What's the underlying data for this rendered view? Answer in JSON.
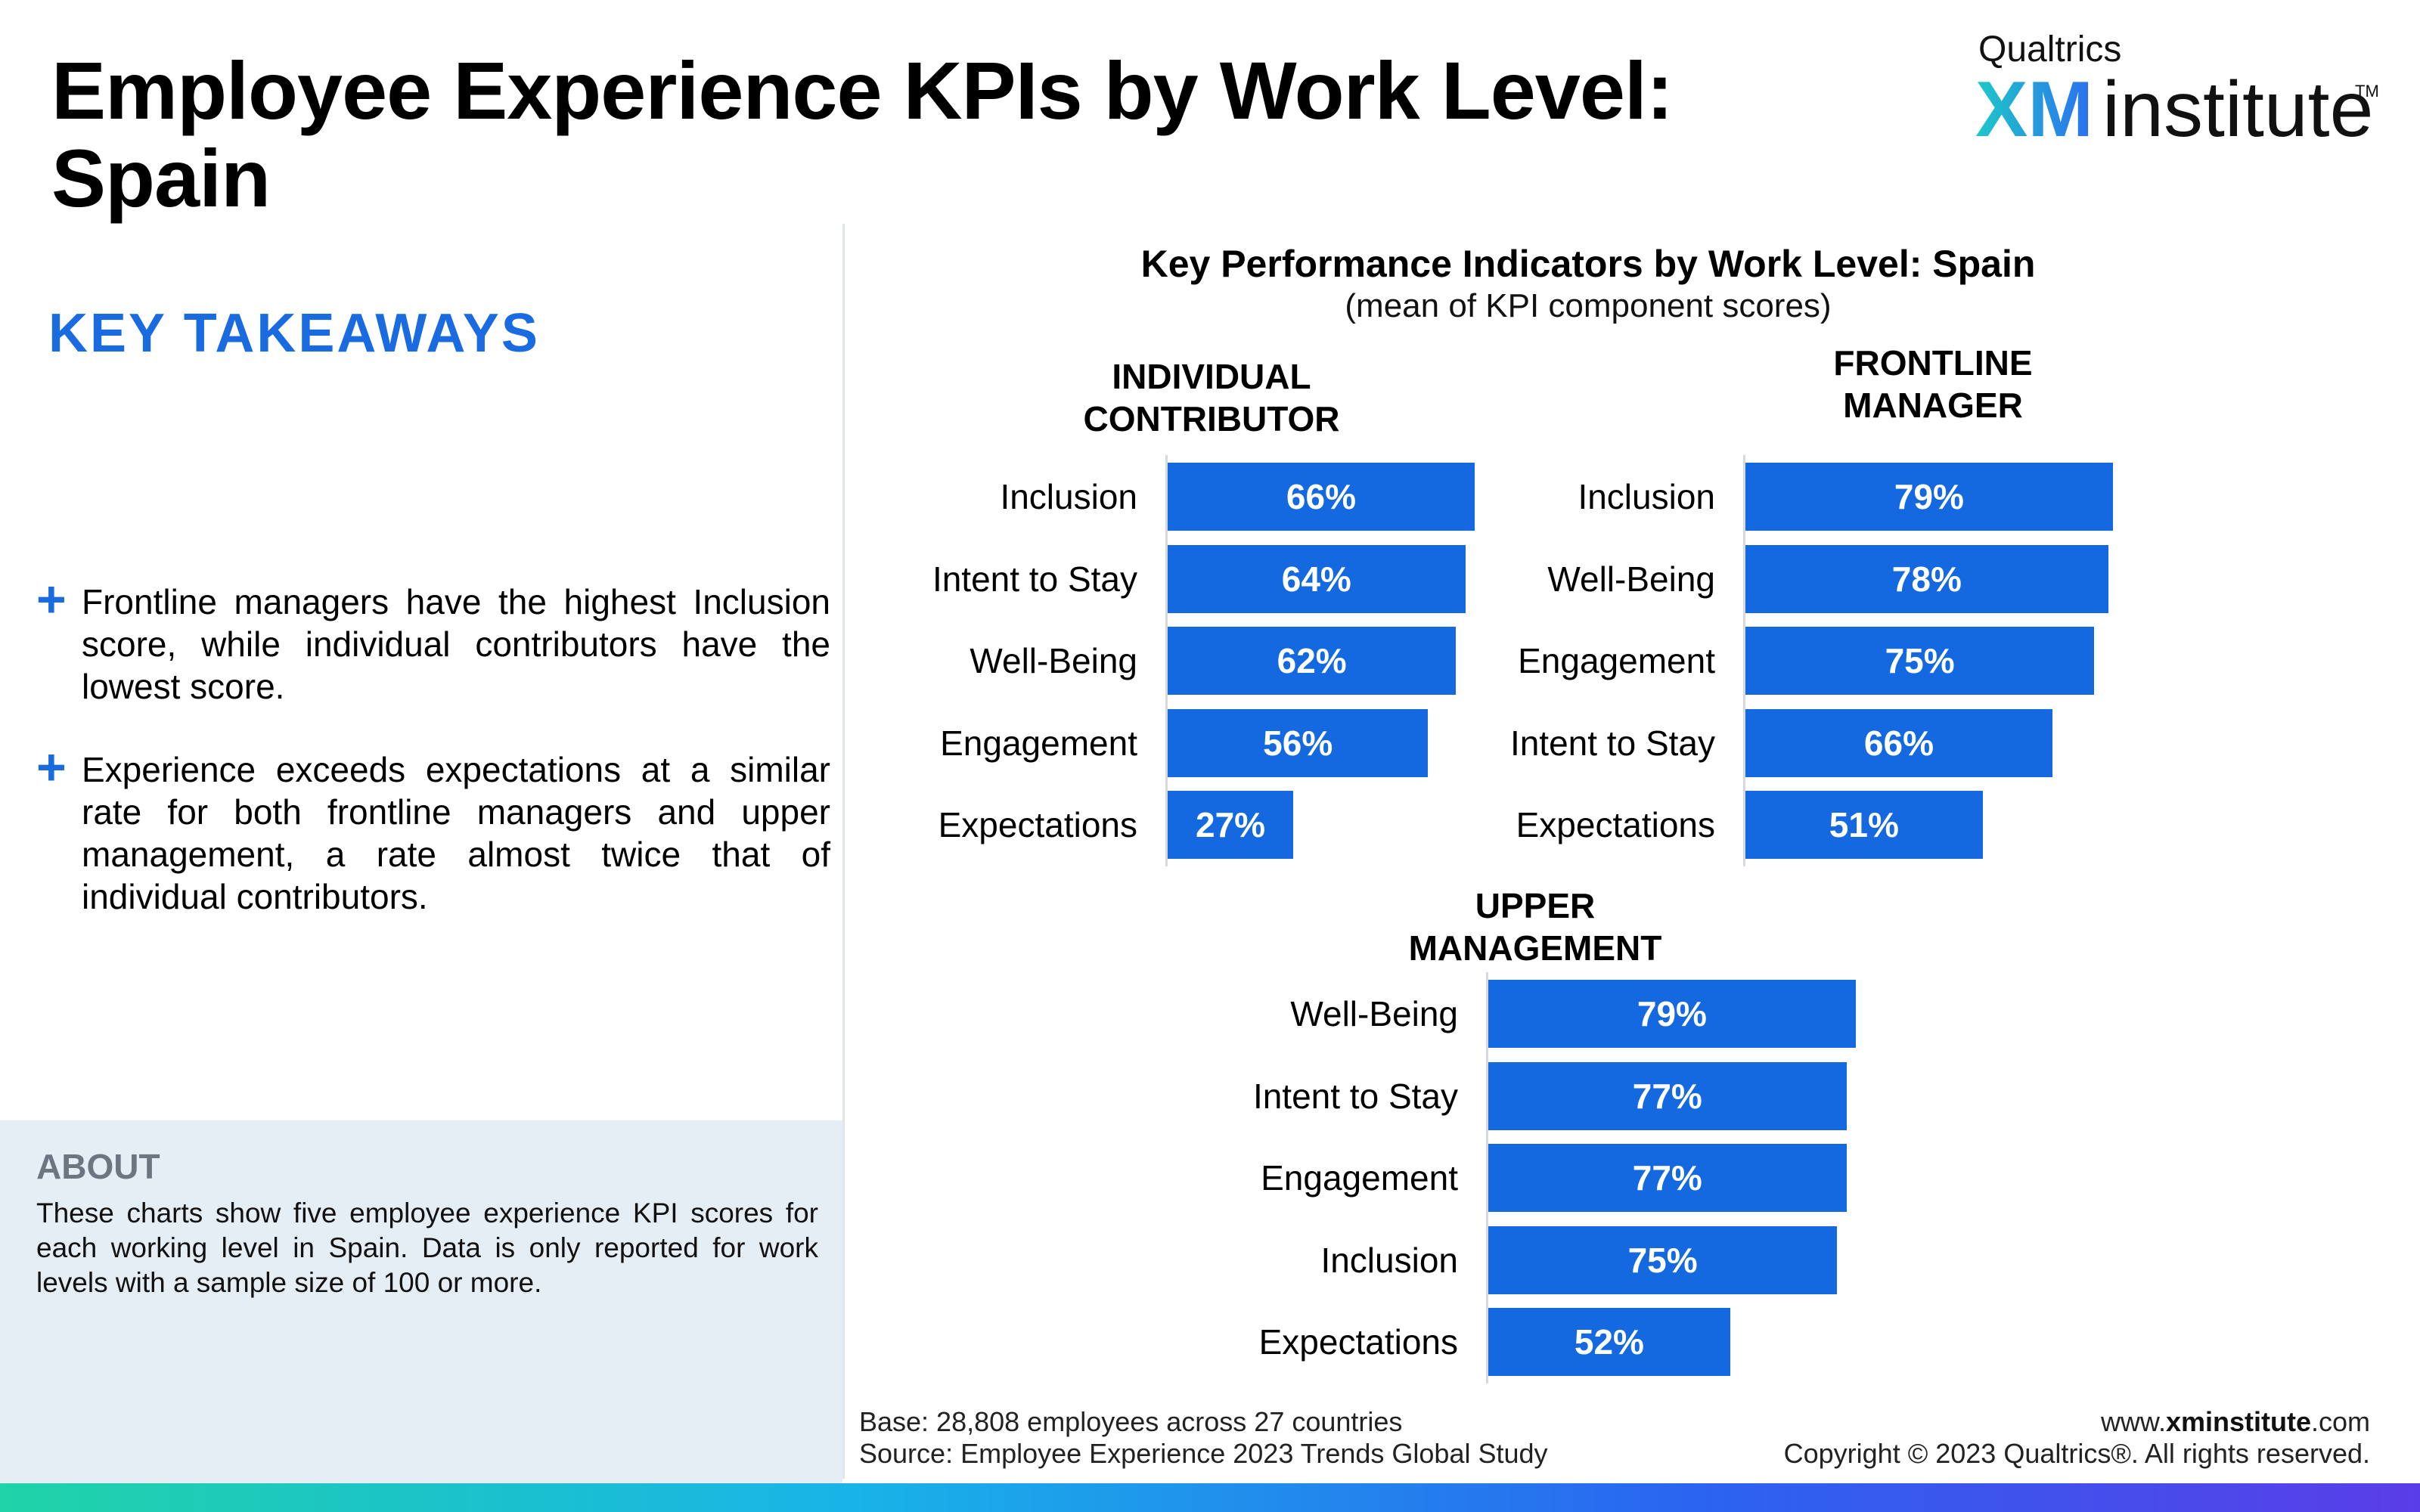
{
  "header": {
    "title": "Employee Experience KPIs by Work Level: Spain",
    "logo_top": "Qualtrics",
    "logo_xm": "XM",
    "logo_institute": "institute",
    "logo_tm": "TM"
  },
  "takeaways": {
    "heading": "KEY TAKEAWAYS",
    "items": [
      "Frontline managers have the highest Inclusion score, while individual contributors have the lowest score.",
      "Experience exceeds expectations at a similar rate for both frontline managers and upper management, a rate almost twice that of individual contributors."
    ]
  },
  "about": {
    "title": "ABOUT",
    "text": "These charts show five employee experience KPI scores for each working level in Spain. Data is only reported for work levels with a sample size of 100 or more."
  },
  "chart_data": {
    "type": "bar",
    "orientation": "horizontal",
    "title": "Key Performance Indicators by Work Level: Spain",
    "subtitle": "(mean of KPI component scores)",
    "unit": "%",
    "xlim": [
      0,
      100
    ],
    "bar_color": "#1469e0",
    "panels": [
      {
        "title_lines": [
          "INDIVIDUAL",
          "CONTRIBUTOR"
        ],
        "categories": [
          "Inclusion",
          "Intent to Stay",
          "Well-Being",
          "Engagement",
          "Expectations"
        ],
        "values": [
          66,
          64,
          62,
          56,
          27
        ],
        "labels": [
          "66%",
          "64%",
          "62%",
          "56%",
          "27%"
        ]
      },
      {
        "title_lines": [
          "FRONTLINE",
          "MANAGER"
        ],
        "categories": [
          "Inclusion",
          "Well-Being",
          "Engagement",
          "Intent to Stay",
          "Expectations"
        ],
        "values": [
          79,
          78,
          75,
          66,
          51
        ],
        "labels": [
          "79%",
          "78%",
          "75%",
          "66%",
          "51%"
        ]
      },
      {
        "title_lines": [
          "UPPER",
          "MANAGEMENT"
        ],
        "categories": [
          "Well-Being",
          "Intent to Stay",
          "Engagement",
          "Inclusion",
          "Expectations"
        ],
        "values": [
          79,
          77,
          77,
          75,
          52
        ],
        "labels": [
          "79%",
          "77%",
          "77%",
          "75%",
          "52%"
        ]
      }
    ]
  },
  "footer": {
    "base": "Base: 28,808 employees across 27 countries",
    "source": "Source: Employee Experience 2023 Trends Global Study",
    "url_prefix": "www.",
    "url_bold": "xminstitute",
    "url_suffix": ".com",
    "copyright": "Copyright © 2023 Qualtrics®. All rights reserved."
  }
}
